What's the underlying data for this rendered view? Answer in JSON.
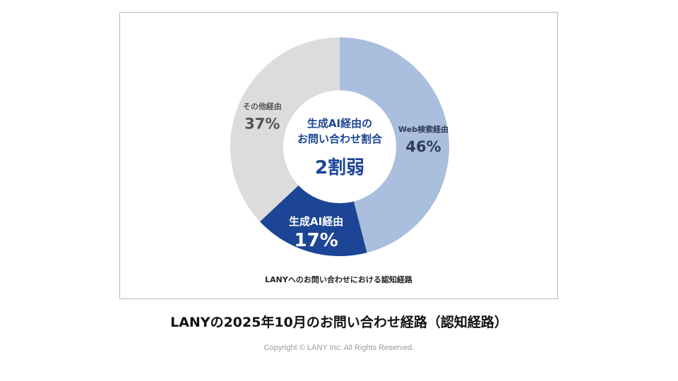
{
  "chart_data": {
    "type": "pie",
    "donut": true,
    "categories": [
      "Web検索経由",
      "生成AI経由",
      "その他経由"
    ],
    "values": [
      46,
      17,
      37
    ],
    "value_labels": [
      "46%",
      "17%",
      "37%"
    ],
    "colors": [
      "#aabedd",
      "#1c4595",
      "#dcdcdc"
    ],
    "label_colors": [
      "#2e3c55",
      "#ffffff",
      "#555555"
    ],
    "center_line1": "生成AI経由の",
    "center_line2": "お問い合わせ割合",
    "center_value": "2割弱",
    "center_color": "#1c4595",
    "caption": "LANYへのお問い合わせにおける認知経路",
    "legend": "none"
  },
  "title": "LANYの2025年10月のお問い合わせ経路（認知経路）",
  "copyright": "Copyright © LANY Inc. All Rights Reserved."
}
